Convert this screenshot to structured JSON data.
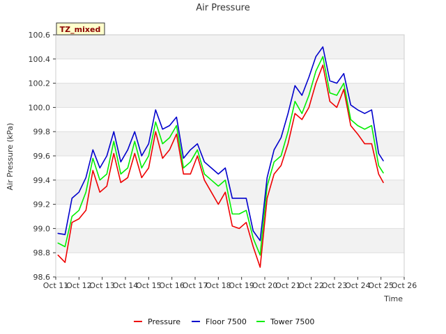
{
  "chart_data": {
    "type": "line",
    "title": "Air Pressure",
    "xlabel": "Time",
    "ylabel": "Air Pressure (kPa)",
    "tag": "TZ_mixed",
    "xlim": [
      11,
      26
    ],
    "ylim": [
      98.6,
      100.6
    ],
    "x_ticks": [
      11,
      12,
      13,
      14,
      15,
      16,
      17,
      18,
      19,
      20,
      21,
      22,
      23,
      24,
      25,
      26
    ],
    "x_tick_labels": [
      "Oct 11",
      "Oct 12",
      "Oct 13",
      "Oct 14",
      "Oct 15",
      "Oct 16",
      "Oct 17",
      "Oct 18",
      "Oct 19",
      "Oct 20",
      "Oct 21",
      "Oct 22",
      "Oct 23",
      "Oct 24",
      "Oct 25",
      "Oct 26"
    ],
    "y_ticks": [
      98.6,
      98.8,
      99.0,
      99.2,
      99.4,
      99.6,
      99.8,
      100.0,
      100.2,
      100.4,
      100.6
    ],
    "y_tick_labels": [
      "98.6",
      "98.8",
      "99.0",
      "99.2",
      "99.4",
      "99.6",
      "99.8",
      "100.0",
      "100.2",
      "100.4",
      "100.6"
    ],
    "grid": true,
    "legend_position": "bottom",
    "x": [
      11.1,
      11.4,
      11.7,
      12.0,
      12.3,
      12.6,
      12.9,
      13.2,
      13.5,
      13.8,
      14.1,
      14.4,
      14.7,
      15.0,
      15.3,
      15.6,
      15.9,
      16.2,
      16.5,
      16.8,
      17.1,
      17.4,
      17.7,
      18.0,
      18.3,
      18.6,
      18.9,
      19.2,
      19.5,
      19.8,
      20.1,
      20.4,
      20.7,
      21.0,
      21.3,
      21.6,
      21.9,
      22.2,
      22.5,
      22.8,
      23.1,
      23.4,
      23.7,
      24.0,
      24.3,
      24.6,
      24.9,
      25.1
    ],
    "series": [
      {
        "name": "Pressure",
        "color": "#ee0000",
        "values": [
          98.78,
          98.72,
          99.05,
          99.08,
          99.15,
          99.48,
          99.3,
          99.35,
          99.62,
          99.38,
          99.42,
          99.62,
          99.42,
          99.5,
          99.8,
          99.58,
          99.65,
          99.78,
          99.45,
          99.45,
          99.6,
          99.4,
          99.3,
          99.2,
          99.3,
          99.02,
          99.0,
          99.05,
          98.85,
          98.68,
          99.25,
          99.45,
          99.52,
          99.7,
          99.95,
          99.9,
          100.0,
          100.2,
          100.35,
          100.05,
          100.0,
          100.15,
          99.85,
          99.78,
          99.7,
          99.7,
          99.45,
          99.38
        ]
      },
      {
        "name": "Floor 7500",
        "color": "#0000cc",
        "values": [
          98.96,
          98.95,
          99.25,
          99.3,
          99.42,
          99.65,
          99.5,
          99.6,
          99.8,
          99.55,
          99.65,
          99.8,
          99.6,
          99.7,
          99.98,
          99.82,
          99.85,
          99.92,
          99.58,
          99.65,
          99.7,
          99.55,
          99.5,
          99.45,
          99.5,
          99.25,
          99.25,
          99.25,
          98.98,
          98.9,
          99.42,
          99.65,
          99.75,
          99.95,
          100.18,
          100.1,
          100.25,
          100.42,
          100.5,
          100.22,
          100.2,
          100.28,
          100.02,
          99.98,
          99.95,
          99.98,
          99.62,
          99.56
        ]
      },
      {
        "name": "Tower 7500",
        "color": "#00ee00",
        "values": [
          98.88,
          98.85,
          99.1,
          99.15,
          99.3,
          99.58,
          99.4,
          99.45,
          99.72,
          99.45,
          99.5,
          99.72,
          99.5,
          99.6,
          99.88,
          99.7,
          99.75,
          99.85,
          99.5,
          99.55,
          99.65,
          99.45,
          99.4,
          99.35,
          99.4,
          99.12,
          99.12,
          99.15,
          98.92,
          98.78,
          99.35,
          99.55,
          99.6,
          99.8,
          100.05,
          99.95,
          100.1,
          100.3,
          100.42,
          100.12,
          100.1,
          100.2,
          99.9,
          99.85,
          99.82,
          99.85,
          99.52,
          99.46
        ]
      }
    ]
  }
}
